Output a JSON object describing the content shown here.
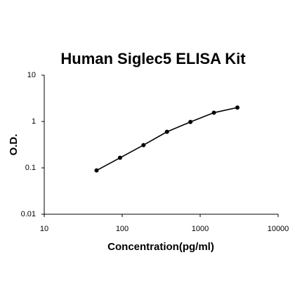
{
  "chart_data": {
    "type": "line",
    "title": "Human Siglec5 ELISA Kit",
    "x_label": "Concentration(pg/ml)",
    "y_label": "O.D.",
    "x": [
      46.875,
      93.75,
      187.5,
      375,
      750,
      1500,
      3000
    ],
    "series": [
      {
        "values": [
          0.088,
          0.165,
          0.31,
          0.6,
          0.98,
          1.55,
          2.0
        ],
        "color": "#000000"
      }
    ],
    "x_log": true,
    "y_log": true,
    "xlim": [
      10,
      10000
    ],
    "xticks": [
      10,
      100,
      1000,
      10000
    ],
    "ylim": [
      0.01,
      10
    ],
    "yticks": [
      0.01,
      0.1,
      1,
      10
    ]
  }
}
